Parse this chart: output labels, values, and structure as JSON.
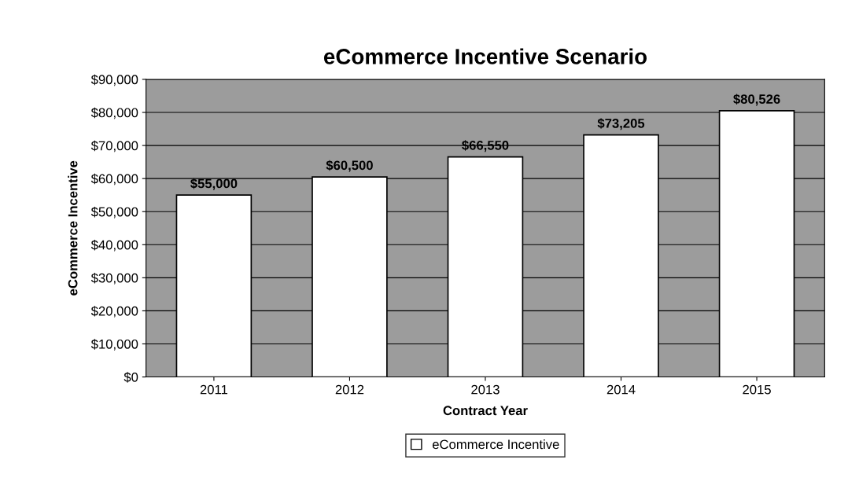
{
  "chart_data": {
    "type": "bar",
    "title": "eCommerce Incentive Scenario",
    "xlabel": "Contract Year",
    "ylabel": "eCommerce Incentive",
    "categories": [
      "2011",
      "2012",
      "2013",
      "2014",
      "2015"
    ],
    "series": [
      {
        "name": "eCommerce Incentive",
        "color": "#ffffff",
        "values": [
          55000,
          60500,
          66550,
          73205,
          80526
        ],
        "value_labels": [
          "$55,000",
          "$60,500",
          "$66,550",
          "$73,205",
          "$80,526"
        ]
      }
    ],
    "ylim": [
      0,
      90000
    ],
    "yticks": [
      {
        "value": 0,
        "label": "$0"
      },
      {
        "value": 10000,
        "label": "$10,000"
      },
      {
        "value": 20000,
        "label": "$20,000"
      },
      {
        "value": 30000,
        "label": "$30,000"
      },
      {
        "value": 40000,
        "label": "$40,000"
      },
      {
        "value": 50000,
        "label": "$50,000"
      },
      {
        "value": 60000,
        "label": "$60,000"
      },
      {
        "value": 70000,
        "label": "$70,000"
      },
      {
        "value": 80000,
        "label": "$80,000"
      },
      {
        "value": 90000,
        "label": "$90,000"
      }
    ],
    "grid": "y",
    "legend": "bottom"
  }
}
